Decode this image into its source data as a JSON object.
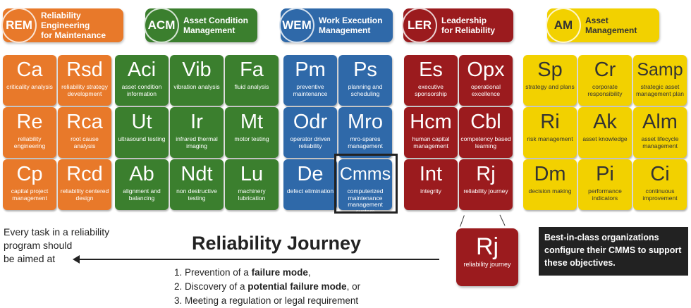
{
  "groups": [
    {
      "abbr": "REM",
      "title": "Reliability Engineering\nfor Maintenance",
      "color": "#e8792a",
      "text": "#ffffff",
      "cols": 2,
      "tiles": [
        [
          "Ca",
          "criticality analysis"
        ],
        [
          "Rsd",
          "reliability strategy development"
        ],
        [
          "Re",
          "reliability engineering"
        ],
        [
          "Rca",
          "root cause analysis"
        ],
        [
          "Cp",
          "capital project management"
        ],
        [
          "Rcd",
          "reliability centered design"
        ]
      ]
    },
    {
      "abbr": "ACM",
      "title": "Asset Condition\nManagement",
      "color": "#3b7f2e",
      "text": "#ffffff",
      "cols": 3,
      "tiles": [
        [
          "Aci",
          "asset condition information"
        ],
        [
          "Vib",
          "vibration analysis"
        ],
        [
          "Fa",
          "fluid analysis"
        ],
        [
          "Ut",
          "ultrasound testing"
        ],
        [
          "Ir",
          "infrared thermal imaging"
        ],
        [
          "Mt",
          "motor testing"
        ],
        [
          "Ab",
          "alignment and balancing"
        ],
        [
          "Ndt",
          "non destructive testing"
        ],
        [
          "Lu",
          "machinery lubrication"
        ]
      ]
    },
    {
      "abbr": "WEM",
      "title": "Work Execution\nManagement",
      "color": "#2f69a9",
      "text": "#ffffff",
      "cols": 2,
      "tiles": [
        [
          "Pm",
          "preventive maintenance"
        ],
        [
          "Ps",
          "planning and scheduling"
        ],
        [
          "Odr",
          "operator driven reliability"
        ],
        [
          "Mro",
          "mro-spares management"
        ],
        [
          "De",
          "defect elimination"
        ],
        [
          "Cmms",
          "computerized maintenance management system"
        ]
      ]
    },
    {
      "abbr": "LER",
      "title": "Leadership\nfor Reliability",
      "color": "#9b1b1e",
      "text": "#ffffff",
      "cols": 2,
      "tiles": [
        [
          "Es",
          "executive sponsorship"
        ],
        [
          "Opx",
          "operational excellence"
        ],
        [
          "Hcm",
          "human capital management"
        ],
        [
          "Cbl",
          "competency based learning"
        ],
        [
          "Int",
          "integrity"
        ],
        [
          "Rj",
          "reliability journey"
        ]
      ]
    },
    {
      "abbr": "AM",
      "title": "Asset Management",
      "color": "#f2d100",
      "text": "#333333",
      "cols": 3,
      "tiles": [
        [
          "Sp",
          "strategy and plans"
        ],
        [
          "Cr",
          "corporate responsibility"
        ],
        [
          "Samp",
          "strategic asset management plan"
        ],
        [
          "Ri",
          "risk management"
        ],
        [
          "Ak",
          "asset knowledge"
        ],
        [
          "Alm",
          "asset lifecycle management"
        ],
        [
          "Dm",
          "decision making"
        ],
        [
          "Pi",
          "performance indicators"
        ],
        [
          "Ci",
          "continuous improvement"
        ]
      ]
    }
  ],
  "highlighted_tile": "Cmms",
  "left_text": "Every task in a reliability\nprogram should\nbe aimed at",
  "journey_title": "Reliability Journey",
  "list": [
    {
      "pre": "1. Prevention of a ",
      "bold": "failure mode",
      "post": ","
    },
    {
      "pre": "2. Discovery of a ",
      "bold": "potential failure mode",
      "post": ", or"
    },
    {
      "pre": "3. Meeting a regulation or legal requirement",
      "bold": "",
      "post": ""
    }
  ],
  "rj_tile": {
    "sym": "Rj",
    "name": "reliability journey"
  },
  "note": "Best-in-class organizations configure their CMMS to support these objectives."
}
